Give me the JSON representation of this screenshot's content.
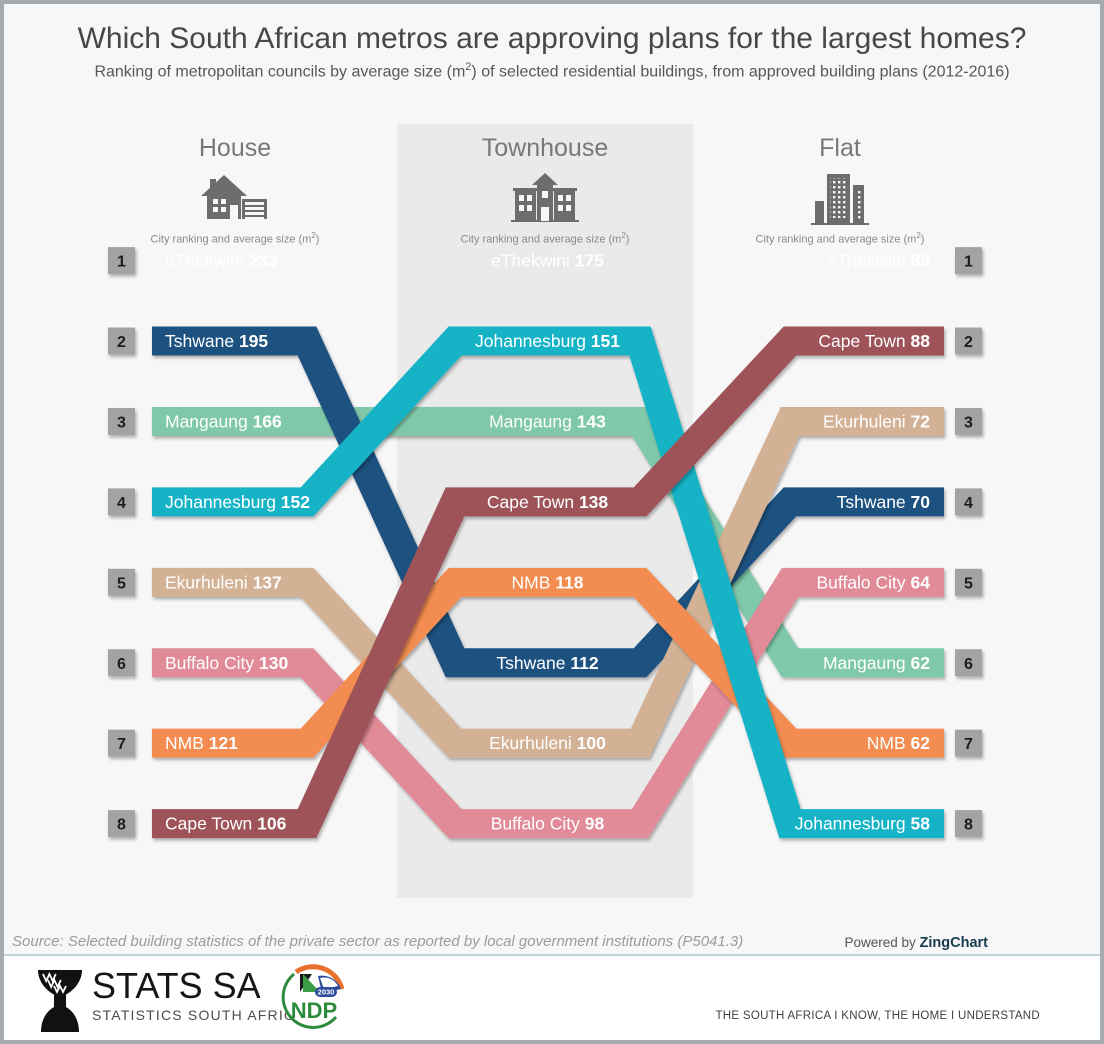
{
  "title": "Which South African metros are approving plans for the largest homes?",
  "subtitle": {
    "pre": "Ranking of metropolitan councils by average size (m",
    "sup": "2",
    "post": ") of selected residential buildings, from approved building plans (2012-2016)"
  },
  "columns": [
    {
      "label": "House",
      "icon": "house-icon"
    },
    {
      "label": "Townhouse",
      "icon": "townhouse-icon"
    },
    {
      "label": "Flat",
      "icon": "flat-icon"
    }
  ],
  "column_caption": {
    "pre": "City ranking and average size (m",
    "sup": "2",
    "post": ")"
  },
  "chart_data": {
    "type": "bump-ranking",
    "columns": [
      "House",
      "Townhouse",
      "Flat"
    ],
    "ranks_shown": [
      1,
      2,
      3,
      4,
      5,
      6,
      7,
      8
    ],
    "badge_color": "#a3a3a3",
    "series": [
      {
        "name": "eThekwini",
        "color": "#a8cbdf",
        "ranks": [
          1,
          1,
          1
        ],
        "values": [
          233,
          175,
          89
        ]
      },
      {
        "name": "Tshwane",
        "color": "#1f5180",
        "ranks": [
          2,
          6,
          4
        ],
        "values": [
          195,
          112,
          70
        ]
      },
      {
        "name": "Mangaung",
        "color": "#7fc8a9",
        "ranks": [
          3,
          3,
          6
        ],
        "values": [
          166,
          143,
          62
        ]
      },
      {
        "name": "Johannesburg",
        "color": "#12b3c7",
        "ranks": [
          4,
          2,
          8
        ],
        "values": [
          152,
          151,
          58
        ]
      },
      {
        "name": "Ekurhuleni",
        "color": "#d2b194",
        "ranks": [
          5,
          7,
          3
        ],
        "values": [
          137,
          100,
          72
        ]
      },
      {
        "name": "Buffalo City",
        "color": "#e08b97",
        "ranks": [
          6,
          8,
          5
        ],
        "values": [
          130,
          98,
          64
        ]
      },
      {
        "name": "NMB",
        "color": "#f28c51",
        "ranks": [
          7,
          5,
          7
        ],
        "values": [
          121,
          118,
          62
        ]
      },
      {
        "name": "Cape Town",
        "color": "#9d5358",
        "ranks": [
          8,
          4,
          2
        ],
        "values": [
          106,
          138,
          88
        ]
      }
    ],
    "draw_order": [
      "eThekwini",
      "Mangaung",
      "Tshwane",
      "Buffalo City",
      "Ekurhuleni",
      "NMB",
      "Johannesburg",
      "Cape Town"
    ]
  },
  "footer": {
    "source": "Source: Selected building statistics of the private sector as reported by local government institutions (P5041.3)",
    "powered_prefix": "Powered by",
    "powered_brand": "ZingChart"
  },
  "branding": {
    "org": "STATS SA",
    "org_sub": "STATISTICS SOUTH AFRICA",
    "ndp": "NDP",
    "ndp_year": "2030",
    "tagline": "THE SOUTH AFRICA I KNOW, THE HOME I UNDERSTAND"
  }
}
